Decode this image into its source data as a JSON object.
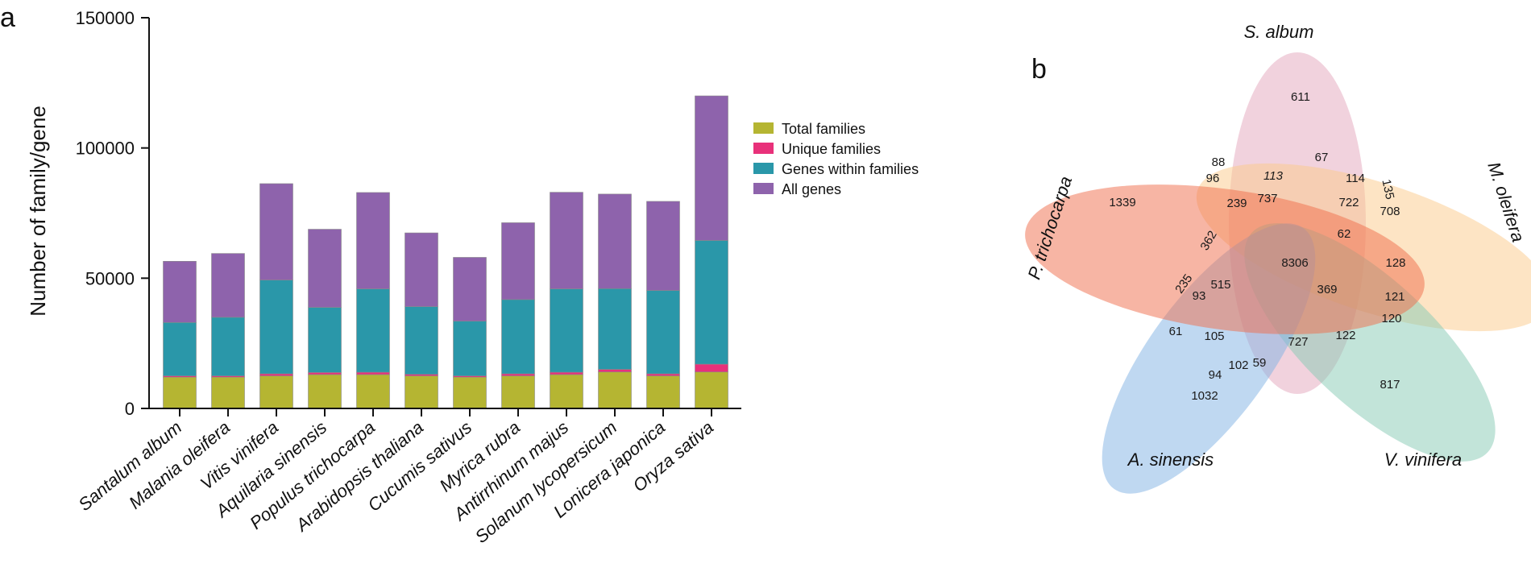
{
  "chart_data": [
    {
      "type": "bar",
      "panel_label": "a",
      "ylabel": "Number of family/gene",
      "ylim": [
        0,
        150000
      ],
      "yticks": [
        0,
        50000,
        100000,
        150000
      ],
      "ytick_labels": [
        "0",
        "50000",
        "100000",
        "150000"
      ],
      "stacked": true,
      "categories": [
        "Santalum album",
        "Malania oleifera",
        "Vitis vinifera",
        "Aquilaria sinensis",
        "Populus trichocarpa",
        "Arabidopsis thaliana",
        "Cucumis sativus",
        "Myrica rubra",
        "Antirrhinum majus",
        "Solanum lycopersicum",
        "Lonicera japonica",
        "Oryza sativa"
      ],
      "series": [
        {
          "name": "Total families",
          "color": "#b5b532",
          "values": [
            12000,
            12000,
            12500,
            13000,
            13000,
            12500,
            12000,
            12500,
            13000,
            14000,
            12500,
            14000
          ]
        },
        {
          "name": "Unique families",
          "color": "#e8317a",
          "values": [
            500,
            500,
            800,
            800,
            900,
            600,
            500,
            800,
            900,
            1000,
            800,
            3000
          ]
        },
        {
          "name": "Genes within families",
          "color": "#2a97a9",
          "values": [
            20500,
            22500,
            36000,
            25000,
            32000,
            26000,
            21000,
            28500,
            32000,
            31000,
            32000,
            47500
          ]
        },
        {
          "name": "All genes",
          "color": "#8e63ac",
          "values": [
            23500,
            24500,
            37000,
            30000,
            37000,
            28300,
            24500,
            29500,
            37100,
            36300,
            34200,
            55500
          ]
        }
      ],
      "legend_position": "right"
    },
    {
      "type": "venn",
      "panel_label": "b",
      "sets": [
        {
          "name": "S. album",
          "color": "#e3a6bc"
        },
        {
          "name": "M. oleifera",
          "color": "#fcc98a"
        },
        {
          "name": "V. vinifera",
          "color": "#86c9b4"
        },
        {
          "name": "A. sinensis",
          "color": "#7fb1e3"
        },
        {
          "name": "P. trichocarpa",
          "color": "#ef6b4a"
        }
      ],
      "region_values": [
        "611",
        "708",
        "817",
        "1032",
        "1339",
        "88",
        "67",
        "96",
        "113",
        "114",
        "135",
        "239",
        "737",
        "722",
        "362",
        "62",
        "8306",
        "128",
        "235",
        "515",
        "369",
        "121",
        "93",
        "120",
        "61",
        "105",
        "727",
        "122",
        "94",
        "102",
        "59"
      ]
    }
  ]
}
